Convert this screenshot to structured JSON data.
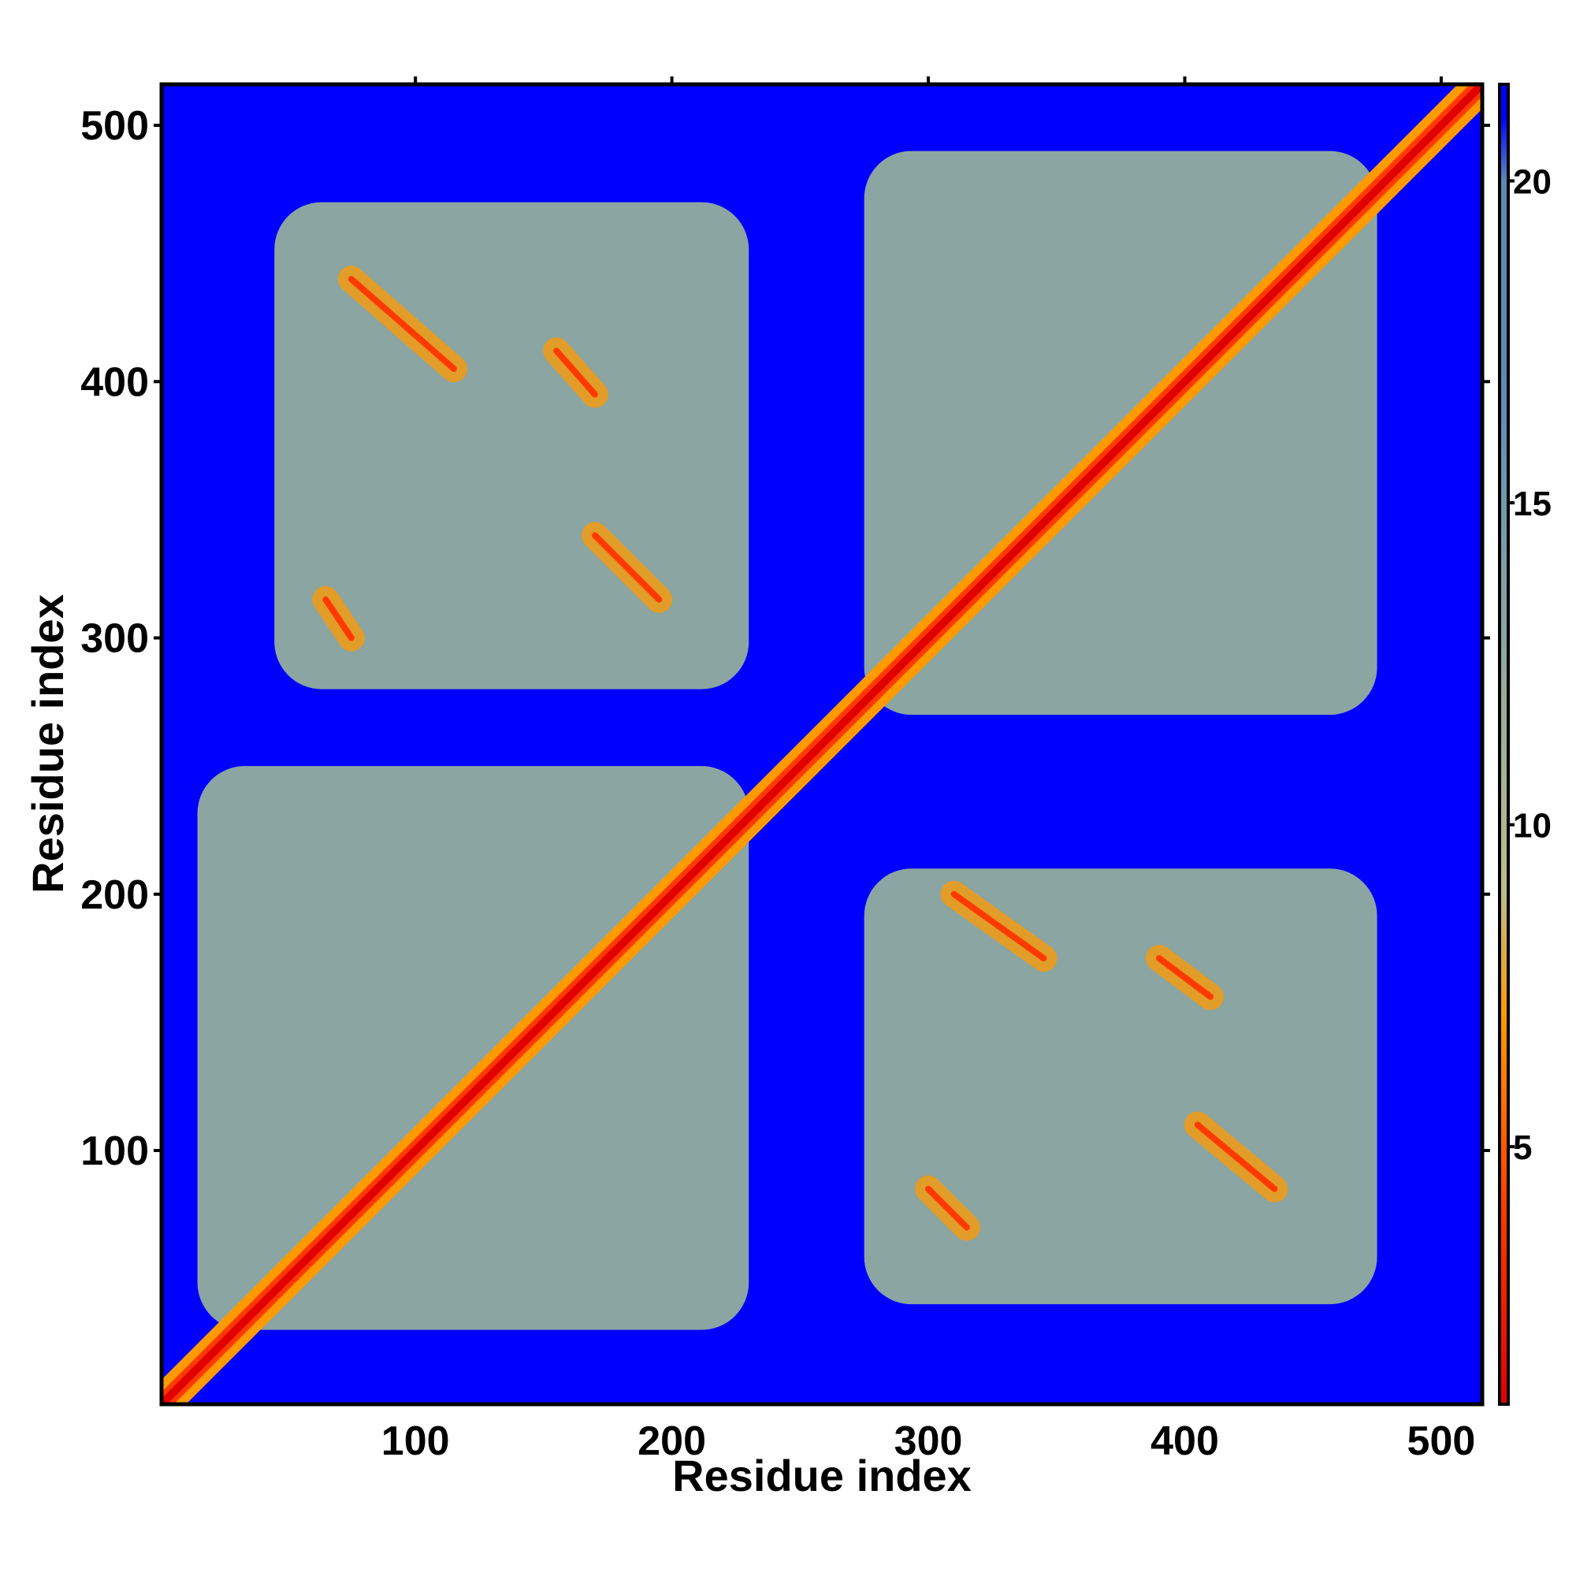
{
  "chart_data": {
    "type": "heatmap",
    "title": "",
    "xlabel": "Residue index",
    "ylabel": "Residue index",
    "xlim": [
      1,
      516
    ],
    "ylim": [
      1,
      516
    ],
    "x_ticks": [
      100,
      200,
      300,
      400,
      500
    ],
    "y_ticks": [
      100,
      200,
      300,
      400,
      500
    ],
    "x_tick_labels": [
      "100",
      "200",
      "300",
      "400",
      "500"
    ],
    "y_tick_labels": [
      "100",
      "200",
      "300",
      "400",
      "500"
    ],
    "colorbar": {
      "range": [
        1,
        21.5
      ],
      "ticks": [
        5,
        10,
        15,
        20
      ],
      "tick_labels": [
        "5",
        "10",
        "15",
        "20"
      ],
      "colors": [
        {
          "value": 1,
          "color": "#e00000"
        },
        {
          "value": 4,
          "color": "#ff3a00"
        },
        {
          "value": 7,
          "color": "#ff9a00"
        },
        {
          "value": 9,
          "color": "#bdbd8a"
        },
        {
          "value": 13,
          "color": "#8ba5a2"
        },
        {
          "value": 17,
          "color": "#5a8bb8"
        },
        {
          "value": 20,
          "color": "#5a8bb8"
        },
        {
          "value": 21,
          "color": "#0000ff"
        }
      ]
    },
    "matrix_symmetric": true,
    "background_value": 21.5,
    "diagonal_value": 1,
    "domains": [
      {
        "name": "",
        "range": [
          1,
          230
        ]
      },
      {
        "name": "",
        "range": [
          270,
          516
        ]
      }
    ],
    "contact_blocks": [
      {
        "x": [
          15,
          230
        ],
        "y": [
          30,
          250
        ],
        "mean_value": 17
      },
      {
        "x": [
          275,
          475
        ],
        "y": [
          270,
          490
        ],
        "mean_value": 17
      },
      {
        "x": [
          45,
          230
        ],
        "y": [
          280,
          470
        ],
        "mean_value": 17
      },
      {
        "x": [
          275,
          475
        ],
        "y": [
          40,
          210
        ],
        "mean_value": 17
      }
    ],
    "features": [
      {
        "x": [
          75,
          115
        ],
        "y": [
          405,
          440
        ],
        "min_value": 5
      },
      {
        "x": [
          155,
          170
        ],
        "y": [
          395,
          412
        ],
        "min_value": 6
      },
      {
        "x": [
          170,
          195
        ],
        "y": [
          315,
          340
        ],
        "min_value": 5
      },
      {
        "x": [
          65,
          75
        ],
        "y": [
          300,
          315
        ],
        "min_value": 7
      },
      {
        "x": [
          310,
          345
        ],
        "y": [
          175,
          200
        ],
        "min_value": 5
      },
      {
        "x": [
          390,
          410
        ],
        "y": [
          160,
          175
        ],
        "min_value": 6
      },
      {
        "x": [
          405,
          435
        ],
        "y": [
          85,
          110
        ],
        "min_value": 5
      },
      {
        "x": [
          300,
          315
        ],
        "y": [
          70,
          85
        ],
        "min_value": 7
      }
    ]
  }
}
